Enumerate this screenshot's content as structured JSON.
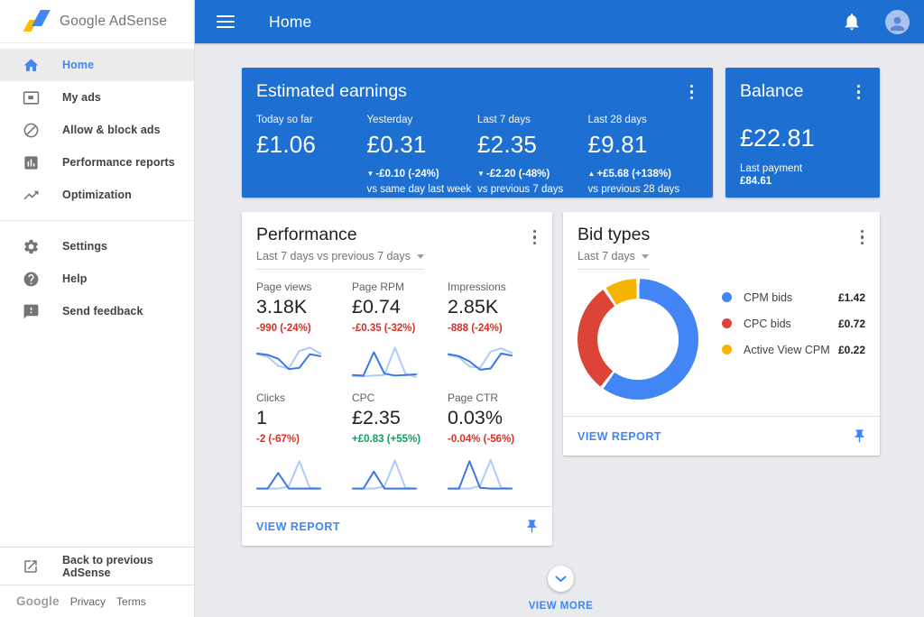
{
  "brand": {
    "google": "Google",
    "adsense": "AdSense"
  },
  "topbar": {
    "title": "Home"
  },
  "colors": {
    "primary_blue": "#1e6fd2",
    "accent_blue": "#4285f4",
    "negative_red": "#d93025",
    "positive_green": "#0f9d58",
    "donut_blue": "#4285f4",
    "donut_red": "#db4437",
    "donut_yellow": "#f4b400",
    "spark_current": "#3b78e7",
    "spark_previous": "#aecbfa"
  },
  "sidebar": {
    "items": [
      {
        "label": "Home",
        "icon": "home",
        "active": true
      },
      {
        "label": "My ads",
        "icon": "my-ads",
        "active": false
      },
      {
        "label": "Allow & block ads",
        "icon": "block",
        "active": false
      },
      {
        "label": "Performance reports",
        "icon": "reports",
        "active": false
      },
      {
        "label": "Optimization",
        "icon": "trending-up",
        "active": false
      }
    ],
    "secondary_items": [
      {
        "label": "Settings",
        "icon": "gear",
        "active": false
      },
      {
        "label": "Help",
        "icon": "help",
        "active": false
      },
      {
        "label": "Send feedback",
        "icon": "feedback",
        "active": false
      }
    ],
    "back_label": "Back to previous AdSense"
  },
  "footer": {
    "google": "Google",
    "privacy": "Privacy",
    "terms": "Terms"
  },
  "earnings": {
    "title": "Estimated earnings",
    "columns": [
      {
        "label": "Today so far",
        "value": "£1.06",
        "arrow": "",
        "delta": "",
        "compare": ""
      },
      {
        "label": "Yesterday",
        "value": "£0.31",
        "arrow": "▼",
        "delta": "-£0.10 (-24%)",
        "compare": "vs same day last week"
      },
      {
        "label": "Last 7 days",
        "value": "£2.35",
        "arrow": "▼",
        "delta": "-£2.20 (-48%)",
        "compare": "vs previous 7 days"
      },
      {
        "label": "Last 28 days",
        "value": "£9.81",
        "arrow": "▲",
        "delta": "+£5.68 (+138%)",
        "compare": "vs previous 28 days"
      }
    ]
  },
  "balance": {
    "title": "Balance",
    "value": "£22.81",
    "last_payment_label": "Last payment",
    "last_payment_value": "£84.61"
  },
  "performance": {
    "title": "Performance",
    "period": "Last 7 days vs previous 7 days",
    "view_report_label": "VIEW REPORT",
    "metrics": [
      {
        "label": "Page views",
        "value": "3.18K",
        "delta": "-990 (-24%)",
        "trend": "down"
      },
      {
        "label": "Page RPM",
        "value": "£0.74",
        "delta": "-£0.35 (-32%)",
        "trend": "down"
      },
      {
        "label": "Impressions",
        "value": "2.85K",
        "delta": "-888 (-24%)",
        "trend": "down"
      },
      {
        "label": "Clicks",
        "value": "1",
        "delta": "-2 (-67%)",
        "trend": "down"
      },
      {
        "label": "CPC",
        "value": "£2.35",
        "delta": "+£0.83 (+55%)",
        "trend": "up"
      },
      {
        "label": "Page CTR",
        "value": "0.03%",
        "delta": "-0.04% (-56%)",
        "trend": "down"
      }
    ]
  },
  "bid_types": {
    "title": "Bid types",
    "period": "Last 7 days",
    "view_report_label": "VIEW REPORT"
  },
  "view_more": {
    "label": "VIEW MORE"
  },
  "chart_data": [
    {
      "id": "bid-types-donut",
      "type": "pie",
      "title": "Bid types",
      "period": "Last 7 days",
      "legend_position": "right",
      "series": [
        {
          "name": "CPM bids",
          "value": 1.42,
          "display": "£1.42",
          "color": "#4285f4"
        },
        {
          "name": "CPC bids",
          "value": 0.72,
          "display": "£0.72",
          "color": "#db4437"
        },
        {
          "name": "Active View CPM",
          "value": 0.22,
          "display": "£0.22",
          "color": "#f4b400"
        }
      ]
    },
    {
      "id": "performance-sparklines",
      "type": "line",
      "note": "7 evenly spaced points per series, relative scale 0-10, current vs previous period",
      "series": [
        {
          "name": "Page views",
          "current": [
            7.8,
            7.4,
            6.2,
            3.0,
            3.4,
            7.6,
            7.0
          ],
          "previous": [
            7.6,
            6.8,
            4.0,
            3.2,
            8.6,
            9.6,
            7.8
          ]
        },
        {
          "name": "Page RPM",
          "current": [
            1.2,
            1.0,
            8.2,
            1.6,
            1.0,
            1.2,
            1.4
          ],
          "previous": [
            0.8,
            0.8,
            1.0,
            1.2,
            9.6,
            1.6,
            0.6
          ]
        },
        {
          "name": "Impressions",
          "current": [
            7.6,
            7.0,
            5.4,
            2.8,
            3.2,
            7.8,
            7.2
          ],
          "previous": [
            7.4,
            6.6,
            3.8,
            3.4,
            8.4,
            9.4,
            8.0
          ]
        },
        {
          "name": "Clicks",
          "current": [
            0.4,
            0.4,
            5.2,
            0.4,
            0.4,
            0.4,
            0.4
          ],
          "previous": [
            0.4,
            0.4,
            0.4,
            1.0,
            8.8,
            0.6,
            0.4
          ]
        },
        {
          "name": "CPC",
          "current": [
            0.4,
            0.4,
            5.6,
            0.4,
            0.4,
            0.4,
            0.4
          ],
          "previous": [
            0.4,
            0.4,
            0.4,
            1.0,
            9.0,
            0.6,
            0.4
          ]
        },
        {
          "name": "Page CTR",
          "current": [
            0.4,
            0.4,
            8.8,
            0.6,
            0.4,
            0.4,
            0.4
          ],
          "previous": [
            0.4,
            0.4,
            0.4,
            1.2,
            9.2,
            0.6,
            0.4
          ]
        }
      ]
    }
  ]
}
